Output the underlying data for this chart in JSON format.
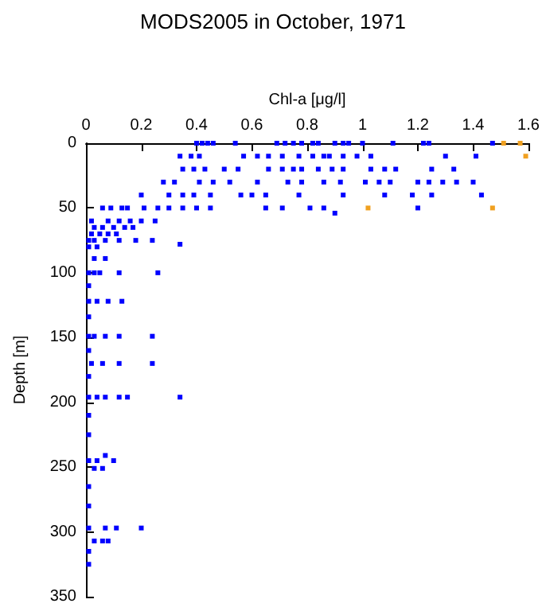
{
  "chart_data": {
    "type": "scatter",
    "title": "MODS2005 in October, 1971",
    "xlabel": "Chl-a [μg/l]",
    "ylabel": "Depth [m]",
    "xlim": [
      0,
      1.6
    ],
    "xticks": [
      0,
      0.2,
      0.4,
      0.6,
      0.8,
      1,
      1.2,
      1.4,
      1.6
    ],
    "ylim": [
      350,
      0
    ],
    "yticks": [
      0,
      50,
      100,
      150,
      200,
      250,
      300,
      350
    ],
    "grid": false,
    "marker": "square",
    "series": [
      {
        "color": "#0000ff",
        "x": [
          0.4,
          0.42,
          0.44,
          0.46,
          0.54,
          0.69,
          0.72,
          0.75,
          0.78,
          0.82,
          0.84,
          0.9,
          0.93,
          0.95,
          1.0,
          1.11,
          1.22,
          1.24,
          1.47,
          0.34,
          0.38,
          0.41,
          0.57,
          0.62,
          0.66,
          0.71,
          0.77,
          0.82,
          0.86,
          0.88,
          0.93,
          0.98,
          1.03,
          1.3,
          1.41,
          0.35,
          0.39,
          0.43,
          0.5,
          0.55,
          0.66,
          0.71,
          0.75,
          0.78,
          0.84,
          0.89,
          0.93,
          1.03,
          1.08,
          1.12,
          1.25,
          1.33,
          0.28,
          0.32,
          0.41,
          0.46,
          0.52,
          0.62,
          0.73,
          0.78,
          0.86,
          0.92,
          1.01,
          1.06,
          1.1,
          1.2,
          1.24,
          1.29,
          1.34,
          1.4,
          0.2,
          0.3,
          0.35,
          0.39,
          0.45,
          0.56,
          0.6,
          0.65,
          0.77,
          0.93,
          1.08,
          1.18,
          1.25,
          1.43,
          0.06,
          0.09,
          0.13,
          0.15,
          0.21,
          0.26,
          0.3,
          0.35,
          0.4,
          0.45,
          0.65,
          0.71,
          0.81,
          0.86,
          1.2,
          0.9,
          0.02,
          0.08,
          0.12,
          0.16,
          0.2,
          0.25,
          0.03,
          0.06,
          0.1,
          0.14,
          0.17,
          0.02,
          0.05,
          0.08,
          0.11,
          0.34,
          0.01,
          0.03,
          0.07,
          0.12,
          0.18,
          0.24,
          0.01,
          0.04,
          0.03,
          0.07,
          0.01,
          0.03,
          0.05,
          0.12,
          0.26,
          0.01,
          0.01,
          0.04,
          0.08,
          0.13,
          0.01,
          0.01,
          0.03,
          0.07,
          0.12,
          0.24,
          0.01,
          0.02,
          0.06,
          0.12,
          0.24,
          0.01,
          0.01,
          0.04,
          0.07,
          0.12,
          0.15,
          0.34,
          0.01,
          0.01,
          0.07,
          0.01,
          0.04,
          0.1,
          0.03,
          0.06,
          0.01,
          0.01,
          0.01,
          0.07,
          0.11,
          0.2,
          0.03,
          0.06,
          0.08,
          0.01,
          0.01
        ],
        "values": [
          0,
          0,
          0,
          0,
          0,
          0,
          0,
          0,
          0,
          0,
          0,
          0,
          0,
          0,
          0,
          0,
          0,
          0,
          0,
          10,
          10,
          10,
          10,
          10,
          10,
          10,
          10,
          10,
          10,
          10,
          10,
          10,
          10,
          10,
          10,
          20,
          20,
          20,
          20,
          20,
          20,
          20,
          20,
          20,
          20,
          20,
          20,
          20,
          20,
          20,
          20,
          20,
          30,
          30,
          30,
          30,
          30,
          30,
          30,
          30,
          30,
          30,
          30,
          30,
          30,
          30,
          30,
          30,
          30,
          30,
          40,
          40,
          40,
          40,
          40,
          40,
          40,
          40,
          40,
          40,
          40,
          40,
          40,
          40,
          50,
          50,
          50,
          50,
          50,
          50,
          50,
          50,
          50,
          50,
          50,
          50,
          50,
          50,
          50,
          54,
          60,
          60,
          60,
          60,
          60,
          60,
          65,
          65,
          65,
          65,
          65,
          70,
          70,
          70,
          70,
          78,
          75,
          75,
          75,
          75,
          75,
          75,
          80,
          80,
          89,
          89,
          100,
          100,
          100,
          100,
          100,
          110,
          122,
          122,
          122,
          122,
          134,
          149,
          149,
          149,
          149,
          149,
          160,
          170,
          170,
          170,
          170,
          180,
          196,
          196,
          196,
          196,
          196,
          196,
          210,
          225,
          241,
          245,
          245,
          245,
          251,
          251,
          265,
          280,
          297,
          297,
          297,
          297,
          307,
          307,
          307,
          315,
          325
        ]
      },
      {
        "color": "#f0a020",
        "x": [
          1.51,
          1.57,
          1.59,
          1.02,
          1.47
        ],
        "values": [
          0,
          0,
          10,
          50,
          50
        ]
      }
    ]
  }
}
